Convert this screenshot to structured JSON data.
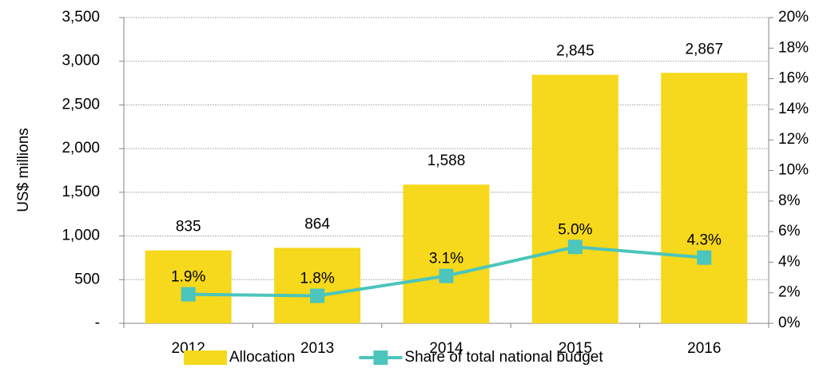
{
  "chart_data": {
    "type": "bar_line",
    "y_label": "US$ millions",
    "categories": [
      "2012",
      "2013",
      "2014",
      "2015",
      "2016"
    ],
    "series": [
      {
        "name": "Allocation",
        "type": "bar",
        "color": "#f6d81c",
        "values": [
          835,
          864,
          1588,
          2845,
          2867
        ],
        "value_labels": [
          "835",
          "864",
          "1,588",
          "2,845",
          "2,867"
        ]
      },
      {
        "name": "Share of total national budget",
        "type": "line",
        "axis": "y2",
        "color": "#4cc5bc",
        "values": [
          1.9,
          1.8,
          3.1,
          5.0,
          4.3
        ],
        "value_labels": [
          "1.9%",
          "1.8%",
          "3.1%",
          "5.0%",
          "4.3%"
        ]
      }
    ],
    "ylim": [
      0,
      3500
    ],
    "yticks": [
      {
        "value": 0,
        "label": "-"
      },
      500,
      {
        "value": 1000,
        "label": "1,000"
      },
      {
        "value": 1500,
        "label": "1,500"
      },
      {
        "value": 2000,
        "label": "2,000"
      },
      {
        "value": 2500,
        "label": "2,500"
      },
      {
        "value": 3000,
        "label": "3,000"
      },
      {
        "value": 3500,
        "label": "3,500"
      }
    ],
    "y2lim": [
      0,
      20
    ],
    "y2ticks": [
      {
        "value": 0,
        "label": "0%"
      },
      {
        "value": 2,
        "label": "2%"
      },
      {
        "value": 4,
        "label": "4%"
      },
      {
        "value": 6,
        "label": "6%"
      },
      {
        "value": 8,
        "label": "8%"
      },
      {
        "value": 10,
        "label": "10%"
      },
      {
        "value": 12,
        "label": "12%"
      },
      {
        "value": 14,
        "label": "14%"
      },
      {
        "value": 16,
        "label": "16%"
      },
      {
        "value": 18,
        "label": "18%"
      },
      {
        "value": 20,
        "label": "20%"
      }
    ],
    "grid": true,
    "legend": "bottom"
  }
}
